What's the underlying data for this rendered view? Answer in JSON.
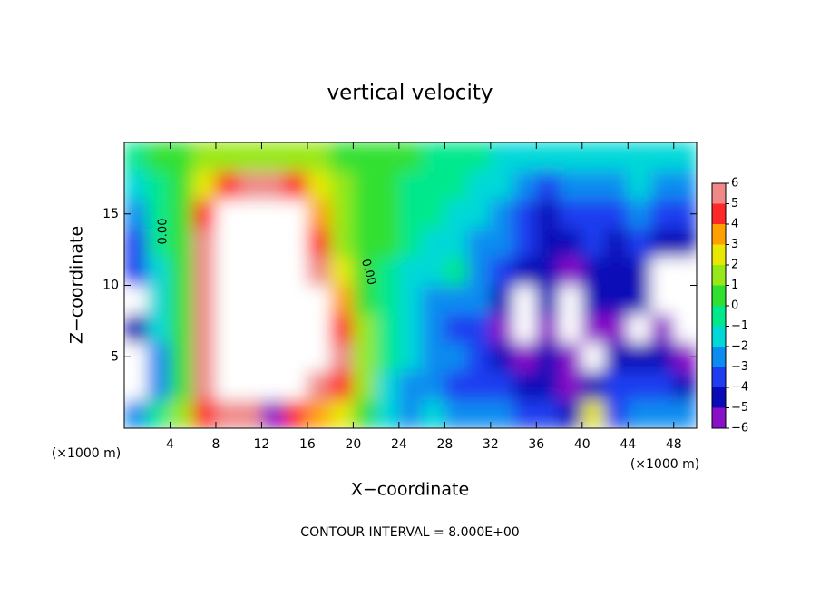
{
  "chart_data": {
    "type": "contour",
    "title": "vertical velocity",
    "x_label": "X−coordinate",
    "y_label": "Z−coordinate",
    "x_unit_left": "(×1000 m)",
    "x_unit_right": "(×1000 m)",
    "footer": "CONTOUR INTERVAL = 8.000E+00",
    "contour_labels": [
      "0.00",
      "0.00"
    ],
    "xlim": [
      0,
      50
    ],
    "ylim": [
      0,
      20
    ],
    "xticks": [
      4,
      8,
      12,
      16,
      20,
      24,
      28,
      32,
      36,
      40,
      44,
      48
    ],
    "yticks": [
      5,
      10,
      15
    ],
    "x": [
      1,
      3,
      5,
      7,
      9,
      11,
      13,
      15,
      17,
      19,
      21,
      23,
      25,
      27,
      29,
      31,
      33,
      35,
      37,
      39,
      41,
      43,
      45,
      47,
      49
    ],
    "y": [
      1,
      3,
      5,
      7,
      9,
      11,
      13,
      15,
      17,
      19
    ],
    "values": [
      [
        -3,
        -7,
        -7,
        -5,
        -7,
        -4,
        -4,
        -3,
        -2,
        -1
      ],
      [
        -1,
        -3,
        -3,
        -2,
        -2,
        -2,
        -1,
        -1,
        -1,
        0
      ],
      [
        1,
        0,
        0,
        0,
        0,
        0,
        0,
        0,
        0,
        0
      ],
      [
        4,
        5,
        6,
        6,
        6,
        6,
        5,
        4,
        2,
        1
      ],
      [
        5,
        7,
        8,
        9,
        9,
        9,
        8,
        7,
        4,
        1
      ],
      [
        5,
        8,
        10,
        12,
        12,
        12,
        12,
        9,
        5,
        1
      ],
      [
        -6,
        8,
        10,
        12,
        12,
        12,
        12,
        9,
        5,
        1
      ],
      [
        4,
        7,
        9,
        10,
        10,
        10,
        9,
        7,
        4,
        1
      ],
      [
        3,
        6,
        7,
        8,
        7,
        5,
        4,
        3,
        2,
        1
      ],
      [
        2,
        4,
        5,
        4,
        3,
        2,
        1,
        1,
        1,
        0
      ],
      [
        0,
        1,
        1,
        1,
        0,
        0,
        0,
        0,
        0,
        0
      ],
      [
        -2,
        -2,
        -1,
        -1,
        -1,
        -1,
        0,
        0,
        0,
        0
      ],
      [
        -3,
        -3,
        -2,
        -2,
        -2,
        -2,
        -1,
        -1,
        -1,
        0
      ],
      [
        -2,
        -3,
        -3,
        -3,
        -3,
        -2,
        -2,
        -1,
        -1,
        -1
      ],
      [
        -3,
        -4,
        -3,
        -4,
        -3,
        -1,
        -2,
        -2,
        -1,
        -1
      ],
      [
        -3,
        -4,
        -4,
        -4,
        -3,
        -3,
        -3,
        -2,
        -2,
        -1
      ],
      [
        -3,
        -4,
        -5,
        -6,
        -5,
        -4,
        -3,
        -3,
        -2,
        -2
      ],
      [
        -4,
        -5,
        -6,
        -7,
        -7,
        -5,
        -4,
        -4,
        -3,
        -2
      ],
      [
        -4,
        -5,
        -5,
        -6,
        -5,
        -5,
        -5,
        -5,
        -4,
        -2
      ],
      [
        -5,
        -6,
        -6,
        -7,
        -7,
        -6,
        -5,
        -4,
        -3,
        -2
      ],
      [
        2,
        -5,
        -7,
        -6,
        -5,
        -5,
        -4,
        -4,
        -3,
        -2
      ],
      [
        -4,
        -4,
        -5,
        -6,
        -5,
        -5,
        -5,
        -4,
        -3,
        -2
      ],
      [
        -3,
        -4,
        -5,
        -7,
        -5,
        -5,
        -4,
        -3,
        -2,
        -2
      ],
      [
        -3,
        -4,
        -5,
        -6,
        -7,
        -7,
        -5,
        -4,
        -3,
        -2
      ],
      [
        -3,
        -5,
        -6,
        -7,
        -7,
        -7,
        -5,
        -4,
        -3,
        -2
      ]
    ],
    "levels": [
      {
        "value": -6,
        "label": "−6"
      },
      {
        "value": -5,
        "label": "−5"
      },
      {
        "value": -4,
        "label": "−4"
      },
      {
        "value": -3,
        "label": "−3"
      },
      {
        "value": -2,
        "label": "−2"
      },
      {
        "value": -1,
        "label": "−1"
      },
      0,
      1,
      2,
      3,
      4,
      5,
      6
    ],
    "colors": [
      "#8a10c8",
      "#0a0ab8",
      "#1e3cf0",
      "#0a8cf0",
      "#00d8d8",
      "#00e88c",
      "#30e030",
      "#98e818",
      "#e8e800",
      "#ffa000",
      "#ff2828",
      "#f08888"
    ],
    "out_of_range_color": "#ffffff"
  }
}
